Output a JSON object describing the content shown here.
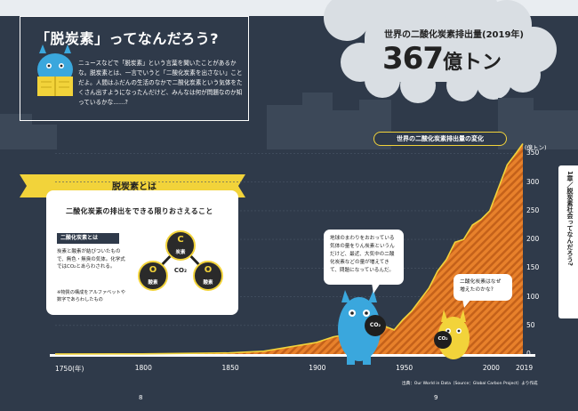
{
  "intro": {
    "title": "「脱炭素」ってなんだろう?",
    "body": "ニュースなどで「脱炭素」という言葉を聞いたことがあるかな。脱炭素とは、一言でいうと「二酸化炭素を出さない」ことだよ。人間はふだんの生活のなかで二酸化炭素という気体をたくさん出すようになったんだけど、みんなは何が問題なのか知っているかな……?"
  },
  "emission_stat": {
    "title": "世界の二酸化炭素排出量(2019年)",
    "value": "367",
    "unit": "億トン"
  },
  "definition": {
    "banner": "脱炭素とは",
    "statement": "二酸化炭素の排出をできる限りおさえること",
    "subheading": "二酸化炭素とは",
    "body": "炭素と酸素が結びついたもので、無色・無臭の気体。化学式ではCO₂とあらわされる。",
    "note": "※物質の構成をアルファベットや数字であらわしたもの",
    "molecule": {
      "carbon_symbol": "C",
      "carbon_label": "炭素",
      "oxygen_symbol": "O",
      "oxygen_label": "酸素",
      "formula": "CO₂"
    }
  },
  "bubbles": {
    "big": "地球のまわりをおおっている気体の量をりん炭素というんだけど、最近、大気中の二酸化炭素などの量が増えてきて、問題になっているんだ。",
    "small": "二酸化炭素はなぜ増えたのかな?"
  },
  "characters": {
    "ball_label": "CO₂"
  },
  "chart_data": {
    "type": "area",
    "title": "世界の二酸化炭素排出量の変化",
    "ylabel": "(億トン)",
    "xlabel": "",
    "x_ticks": [
      "1750(年)",
      "1800",
      "1850",
      "1900",
      "1950",
      "2000",
      "2019"
    ],
    "y_ticks": [
      "0",
      "50",
      "100",
      "150",
      "200",
      "250",
      "300",
      "350"
    ],
    "xlim": [
      1750,
      2019
    ],
    "ylim": [
      0,
      360
    ],
    "x": [
      1750,
      1800,
      1850,
      1870,
      1900,
      1910,
      1920,
      1930,
      1940,
      1945,
      1950,
      1955,
      1960,
      1965,
      1970,
      1975,
      1980,
      1985,
      1990,
      1995,
      2000,
      2005,
      2010,
      2015,
      2019
    ],
    "y": [
      0.1,
      0.3,
      2,
      5,
      20,
      30,
      35,
      39,
      48,
      42,
      60,
      75,
      95,
      115,
      145,
      165,
      195,
      200,
      225,
      235,
      250,
      290,
      330,
      350,
      367
    ],
    "source": "出典：Our World in Data（Source：Global Carbon Project）より作成",
    "colors": {
      "fill": "#e8812b",
      "stripe": "#c4611a",
      "line": "#f2d33a"
    }
  },
  "pages": {
    "left": "8",
    "right": "9"
  },
  "chapter_tab": "1章／脱炭素社会ってなんだろう?"
}
